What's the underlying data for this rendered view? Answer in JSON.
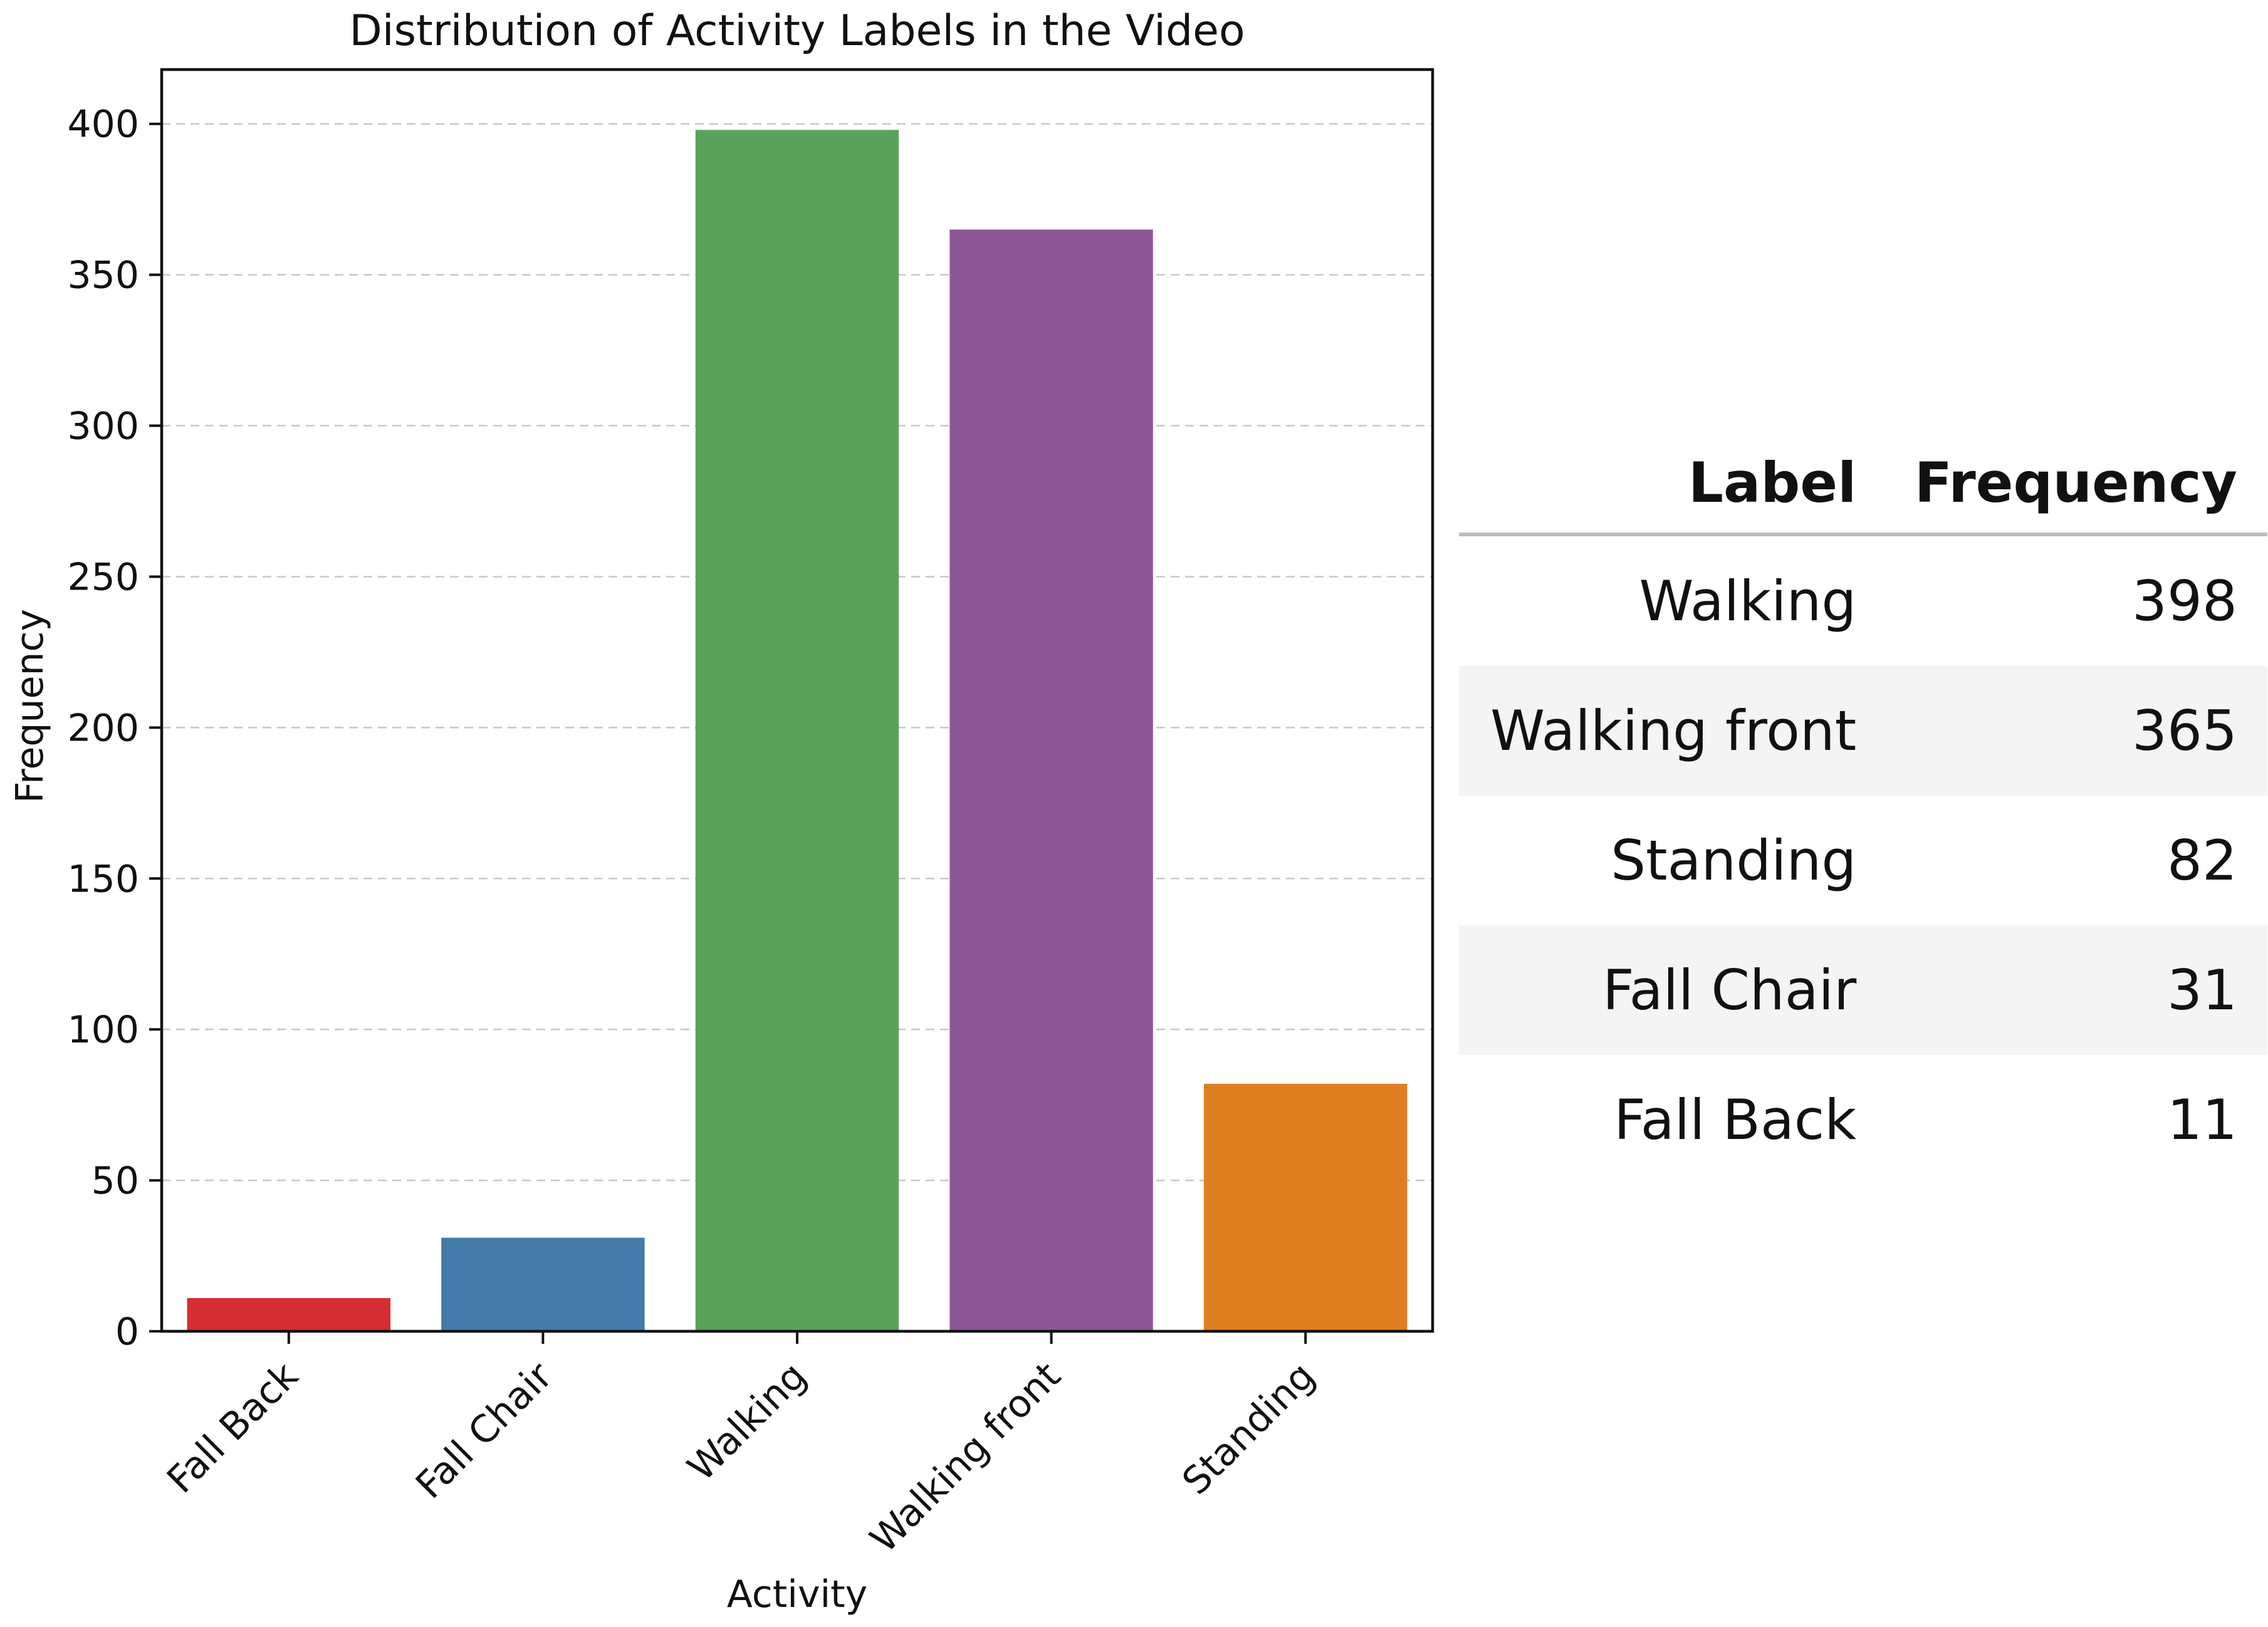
{
  "chart_data": {
    "type": "bar",
    "title": "Distribution of Activity Labels in the Video",
    "xlabel": "Activity",
    "ylabel": "Frequency",
    "categories": [
      "Fall Back",
      "Fall Chair",
      "Walking",
      "Walking front",
      "Standing"
    ],
    "values": [
      11,
      31,
      398,
      365,
      82
    ],
    "colors": [
      "#d62d32",
      "#447bab",
      "#5aa25a",
      "#8d5795",
      "#e07f22"
    ],
    "ylim": [
      0,
      418
    ],
    "yticks": [
      0,
      50,
      100,
      150,
      200,
      250,
      300,
      350,
      400
    ],
    "grid": "horizontal dashed",
    "legend": "none"
  },
  "table": {
    "headers": [
      "Label",
      "Frequency"
    ],
    "rows": [
      {
        "label": "Walking",
        "frequency": "398"
      },
      {
        "label": "Walking front",
        "frequency": "365"
      },
      {
        "label": "Standing",
        "frequency": "82"
      },
      {
        "label": "Fall Chair",
        "frequency": "31"
      },
      {
        "label": "Fall Back",
        "frequency": "11"
      }
    ]
  }
}
